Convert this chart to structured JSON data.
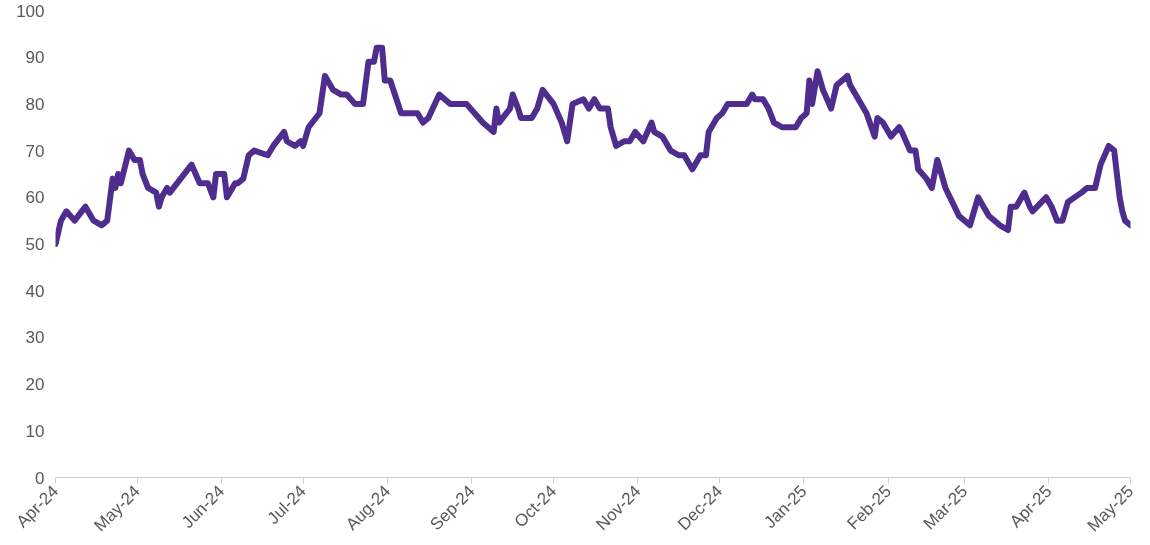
{
  "chart_data": {
    "type": "line",
    "x": [
      "2024-04-01",
      "2024-04-03",
      "2024-04-05",
      "2024-04-08",
      "2024-04-12",
      "2024-04-15",
      "2024-04-18",
      "2024-04-20",
      "2024-04-22",
      "2024-04-23",
      "2024-04-24",
      "2024-04-25",
      "2024-04-28",
      "2024-04-30",
      "2024-05-02",
      "2024-05-03",
      "2024-05-05",
      "2024-05-08",
      "2024-05-09",
      "2024-05-10",
      "2024-05-12",
      "2024-05-13",
      "2024-05-17",
      "2024-05-21",
      "2024-05-24",
      "2024-05-27",
      "2024-05-29",
      "2024-05-30",
      "2024-06-02",
      "2024-06-03",
      "2024-06-06",
      "2024-06-07",
      "2024-06-09",
      "2024-06-11",
      "2024-06-13",
      "2024-06-18",
      "2024-06-20",
      "2024-06-24",
      "2024-06-25",
      "2024-06-28",
      "2024-06-30",
      "2024-07-01",
      "2024-07-03",
      "2024-07-07",
      "2024-07-09",
      "2024-07-12",
      "2024-07-15",
      "2024-07-17",
      "2024-07-20",
      "2024-07-23",
      "2024-07-25",
      "2024-07-27",
      "2024-07-28",
      "2024-07-30",
      "2024-07-31",
      "2024-08-02",
      "2024-08-06",
      "2024-08-08",
      "2024-08-12",
      "2024-08-14",
      "2024-08-16",
      "2024-08-20",
      "2024-08-22",
      "2024-08-24",
      "2024-08-28",
      "2024-08-30",
      "2024-09-02",
      "2024-09-05",
      "2024-09-09",
      "2024-09-10",
      "2024-09-11",
      "2024-09-15",
      "2024-09-16",
      "2024-09-18",
      "2024-09-19",
      "2024-09-23",
      "2024-09-25",
      "2024-09-27",
      "2024-10-01",
      "2024-10-04",
      "2024-10-06",
      "2024-10-08",
      "2024-10-12",
      "2024-10-14",
      "2024-10-16",
      "2024-10-18",
      "2024-10-21",
      "2024-10-22",
      "2024-10-24",
      "2024-10-27",
      "2024-10-29",
      "2024-10-31",
      "2024-11-03",
      "2024-11-06",
      "2024-11-07",
      "2024-11-10",
      "2024-11-13",
      "2024-11-16",
      "2024-11-18",
      "2024-11-21",
      "2024-11-24",
      "2024-11-26",
      "2024-11-27",
      "2024-11-30",
      "2024-12-02",
      "2024-12-04",
      "2024-12-10",
      "2024-12-11",
      "2024-12-13",
      "2024-12-14",
      "2024-12-17",
      "2024-12-19",
      "2024-12-21",
      "2024-12-24",
      "2024-12-27",
      "2024-12-29",
      "2024-12-31",
      "2025-01-02",
      "2025-01-03",
      "2025-01-04",
      "2025-01-06",
      "2025-01-08",
      "2025-01-11",
      "2025-01-13",
      "2025-01-17",
      "2025-01-18",
      "2025-01-20",
      "2025-01-24",
      "2025-01-27",
      "2025-01-28",
      "2025-01-30",
      "2025-02-02",
      "2025-02-05",
      "2025-02-06",
      "2025-02-09",
      "2025-02-11",
      "2025-02-12",
      "2025-02-15",
      "2025-02-17",
      "2025-02-19",
      "2025-02-22",
      "2025-02-27",
      "2025-03-03",
      "2025-03-06",
      "2025-03-08",
      "2025-03-10",
      "2025-03-14",
      "2025-03-17",
      "2025-03-18",
      "2025-03-20",
      "2025-03-23",
      "2025-03-25",
      "2025-03-26",
      "2025-03-31",
      "2025-04-02",
      "2025-04-04",
      "2025-04-06",
      "2025-04-08",
      "2025-04-13",
      "2025-04-15",
      "2025-04-18",
      "2025-04-20",
      "2025-04-23",
      "2025-04-25",
      "2025-04-27",
      "2025-04-28",
      "2025-04-29",
      "2025-05-01"
    ],
    "series": [
      {
        "color": "#4f2d8f",
        "values": [
          50,
          55,
          57,
          55,
          58,
          55,
          54,
          55,
          64,
          62,
          65,
          63,
          70,
          68,
          68,
          65,
          62,
          61,
          58,
          60,
          62,
          61,
          64,
          67,
          63,
          63,
          60,
          65,
          65,
          60,
          63,
          63,
          64,
          69,
          70,
          69,
          71,
          74,
          72,
          71,
          72,
          71,
          75,
          78,
          86,
          83,
          82,
          82,
          80,
          80,
          89,
          89,
          92,
          92,
          85,
          85,
          78,
          78,
          78,
          76,
          77,
          82,
          81,
          80,
          80,
          80,
          78,
          76,
          74,
          79,
          76,
          79,
          82,
          79,
          77,
          77,
          79,
          83,
          80,
          76,
          72,
          80,
          81,
          79,
          81,
          79,
          79,
          75,
          71,
          72,
          72,
          74,
          72,
          76,
          74,
          73,
          70,
          69,
          69,
          66,
          69,
          69,
          74,
          77,
          78,
          80,
          80,
          80,
          82,
          81,
          81,
          79,
          76,
          75,
          75,
          75,
          77,
          78,
          85,
          80,
          87,
          83,
          79,
          84,
          86,
          84,
          82,
          78,
          73,
          77,
          76,
          73,
          75,
          74,
          70,
          70,
          66,
          64,
          62,
          68,
          62,
          56,
          54,
          60,
          58,
          56,
          54,
          53,
          58,
          58,
          61,
          58,
          57,
          60,
          58,
          55,
          55,
          59,
          61,
          62,
          62,
          67,
          71,
          70,
          60,
          57,
          55,
          54
        ]
      }
    ],
    "xlim": [
      "2024-04-01",
      "2025-05-01"
    ],
    "xticks": [
      {
        "value": "2024-04-01",
        "label": "Apr-24"
      },
      {
        "value": "2024-05-01",
        "label": "May-24"
      },
      {
        "value": "2024-06-01",
        "label": "Jun-24"
      },
      {
        "value": "2024-07-01",
        "label": "Jul-24"
      },
      {
        "value": "2024-08-01",
        "label": "Aug-24"
      },
      {
        "value": "2024-09-01",
        "label": "Sep-24"
      },
      {
        "value": "2024-10-01",
        "label": "Oct-24"
      },
      {
        "value": "2024-11-01",
        "label": "Nov-24"
      },
      {
        "value": "2024-12-01",
        "label": "Dec-24"
      },
      {
        "value": "2025-01-01",
        "label": "Jan-25"
      },
      {
        "value": "2025-02-01",
        "label": "Feb-25"
      },
      {
        "value": "2025-03-01",
        "label": "Mar-25"
      },
      {
        "value": "2025-04-01",
        "label": "Apr-25"
      },
      {
        "value": "2025-05-01",
        "label": "May-25"
      }
    ],
    "ylim": [
      0,
      100
    ],
    "yticks": [
      0,
      10,
      20,
      30,
      40,
      50,
      60,
      70,
      80,
      90,
      100
    ],
    "line_style": "solid",
    "marker": "none"
  }
}
